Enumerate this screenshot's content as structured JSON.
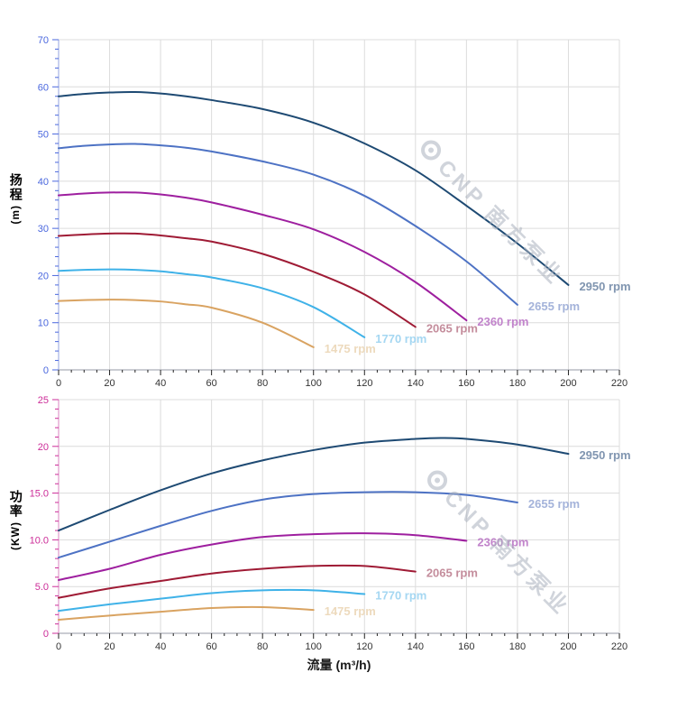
{
  "watermark": {
    "text": "CNP 南方泵业"
  },
  "chart_data": [
    {
      "type": "line",
      "title": "",
      "ylabel": "扬程 (m)",
      "ylabel_text": "扬程",
      "y_unit": "(m)",
      "xlabel": "",
      "xlim": [
        0,
        220
      ],
      "ylim": [
        0,
        70
      ],
      "x_tick_step": 20,
      "x_minor_step": 5,
      "y_tick_step": 10,
      "y_minor_step": 2,
      "x_tick_labels": [
        "0",
        "20",
        "40",
        "60",
        "80",
        "100",
        "120",
        "140",
        "160",
        "180",
        "200",
        "220"
      ],
      "y_tick_labels": [
        "0",
        "10",
        "20",
        "30",
        "40",
        "50",
        "60",
        "70"
      ],
      "grid": true,
      "legend_position": "at-line-end",
      "axis_text_color": "#4a67de",
      "axis_title_color": "#2e4fd6",
      "axis_line_color": "#b7c2ea",
      "series": [
        {
          "name": "2950 rpm",
          "color": "#1e4a73",
          "label_color": "#8095b0",
          "points": [
            [
              0,
              58
            ],
            [
              10,
              58.5
            ],
            [
              20,
              58.8
            ],
            [
              30,
              58.9
            ],
            [
              40,
              58.6
            ],
            [
              50,
              58.0
            ],
            [
              60,
              57.2
            ],
            [
              80,
              55.3
            ],
            [
              100,
              52.4
            ],
            [
              120,
              48.0
            ],
            [
              140,
              42.3
            ],
            [
              160,
              34.8
            ],
            [
              180,
              26.8
            ],
            [
              200,
              18.0
            ]
          ]
        },
        {
          "name": "2655 rpm",
          "color": "#4d72c4",
          "label_color": "#a4b3da",
          "points": [
            [
              0,
              47
            ],
            [
              10,
              47.5
            ],
            [
              20,
              47.8
            ],
            [
              30,
              47.9
            ],
            [
              40,
              47.6
            ],
            [
              50,
              47.1
            ],
            [
              60,
              46.3
            ],
            [
              80,
              44.2
            ],
            [
              100,
              41.4
            ],
            [
              120,
              36.9
            ],
            [
              140,
              30.5
            ],
            [
              160,
              23.0
            ],
            [
              180,
              13.8
            ]
          ]
        },
        {
          "name": "2360 rpm",
          "color": "#9e1f9f",
          "label_color": "#c183cb",
          "points": [
            [
              0,
              37
            ],
            [
              10,
              37.4
            ],
            [
              20,
              37.6
            ],
            [
              30,
              37.6
            ],
            [
              40,
              37.2
            ],
            [
              50,
              36.5
            ],
            [
              60,
              35.5
            ],
            [
              80,
              32.9
            ],
            [
              100,
              29.8
            ],
            [
              120,
              25.0
            ],
            [
              140,
              18.6
            ],
            [
              160,
              10.5
            ]
          ]
        },
        {
          "name": "2065 rpm",
          "color": "#9f1b35",
          "label_color": "#c48d9c",
          "points": [
            [
              0,
              28.4
            ],
            [
              10,
              28.7
            ],
            [
              20,
              28.9
            ],
            [
              30,
              28.9
            ],
            [
              40,
              28.5
            ],
            [
              50,
              27.9
            ],
            [
              60,
              27.2
            ],
            [
              80,
              24.6
            ],
            [
              100,
              20.8
            ],
            [
              120,
              16.0
            ],
            [
              140,
              9.1
            ]
          ]
        },
        {
          "name": "1770 rpm",
          "color": "#3fb2e8",
          "label_color": "#a5d7f2",
          "points": [
            [
              0,
              21
            ],
            [
              10,
              21.2
            ],
            [
              20,
              21.3
            ],
            [
              30,
              21.2
            ],
            [
              40,
              20.9
            ],
            [
              50,
              20.3
            ],
            [
              60,
              19.6
            ],
            [
              80,
              17.3
            ],
            [
              100,
              13.3
            ],
            [
              120,
              6.9
            ]
          ]
        },
        {
          "name": "1475 rpm",
          "color": "#d9a361",
          "label_color": "#eddabd",
          "points": [
            [
              0,
              14.6
            ],
            [
              10,
              14.8
            ],
            [
              20,
              14.9
            ],
            [
              30,
              14.8
            ],
            [
              40,
              14.5
            ],
            [
              50,
              13.9
            ],
            [
              60,
              13.2
            ],
            [
              80,
              10.0
            ],
            [
              100,
              4.8
            ]
          ]
        }
      ]
    },
    {
      "type": "line",
      "title": "",
      "ylabel": "功率 (KW)",
      "ylabel_text": "功率",
      "y_unit": "(KW)",
      "xlabel": "流量 (m³/h)",
      "xlim": [
        0,
        220
      ],
      "ylim": [
        0,
        25
      ],
      "x_tick_step": 20,
      "x_minor_step": 5,
      "y_tick_step": 5,
      "y_minor_step": 1,
      "x_tick_labels": [
        "0",
        "20",
        "40",
        "60",
        "80",
        "100",
        "120",
        "140",
        "160",
        "180",
        "200",
        "220"
      ],
      "y_tick_labels": [
        "0",
        "5.0",
        "10.0",
        "15.0",
        "20",
        "25"
      ],
      "grid": true,
      "legend_position": "at-line-end",
      "axis_text_color": "#cc2c98",
      "axis_title_color": "#bb1487",
      "axis_line_color": "#e6aed6",
      "series": [
        {
          "name": "2950 rpm",
          "color": "#1e4a73",
          "label_color": "#8095b0",
          "points": [
            [
              0,
              11.0
            ],
            [
              20,
              13.2
            ],
            [
              40,
              15.3
            ],
            [
              60,
              17.1
            ],
            [
              80,
              18.5
            ],
            [
              100,
              19.6
            ],
            [
              120,
              20.4
            ],
            [
              140,
              20.8
            ],
            [
              150,
              20.9
            ],
            [
              160,
              20.8
            ],
            [
              180,
              20.2
            ],
            [
              200,
              19.2
            ]
          ]
        },
        {
          "name": "2655 rpm",
          "color": "#4d72c4",
          "label_color": "#a4b3da",
          "points": [
            [
              0,
              8.1
            ],
            [
              20,
              9.8
            ],
            [
              40,
              11.5
            ],
            [
              60,
              13.1
            ],
            [
              80,
              14.3
            ],
            [
              100,
              14.9
            ],
            [
              120,
              15.1
            ],
            [
              140,
              15.1
            ],
            [
              160,
              14.8
            ],
            [
              180,
              14.0
            ]
          ]
        },
        {
          "name": "2360 rpm",
          "color": "#9e1f9f",
          "label_color": "#c183cb",
          "points": [
            [
              0,
              5.7
            ],
            [
              20,
              6.9
            ],
            [
              40,
              8.4
            ],
            [
              60,
              9.5
            ],
            [
              80,
              10.3
            ],
            [
              100,
              10.6
            ],
            [
              120,
              10.7
            ],
            [
              140,
              10.5
            ],
            [
              160,
              9.9
            ]
          ]
        },
        {
          "name": "2065 rpm",
          "color": "#9f1b35",
          "label_color": "#c48d9c",
          "points": [
            [
              0,
              3.8
            ],
            [
              20,
              4.8
            ],
            [
              40,
              5.6
            ],
            [
              60,
              6.4
            ],
            [
              80,
              6.9
            ],
            [
              100,
              7.2
            ],
            [
              120,
              7.2
            ],
            [
              140,
              6.6
            ]
          ]
        },
        {
          "name": "1770 rpm",
          "color": "#3fb2e8",
          "label_color": "#a5d7f2",
          "points": [
            [
              0,
              2.4
            ],
            [
              20,
              3.1
            ],
            [
              40,
              3.7
            ],
            [
              60,
              4.3
            ],
            [
              80,
              4.6
            ],
            [
              100,
              4.6
            ],
            [
              120,
              4.2
            ]
          ]
        },
        {
          "name": "1475 rpm",
          "color": "#d9a361",
          "label_color": "#eddabd",
          "points": [
            [
              0,
              1.45
            ],
            [
              20,
              1.9
            ],
            [
              40,
              2.3
            ],
            [
              60,
              2.7
            ],
            [
              80,
              2.8
            ],
            [
              100,
              2.5
            ]
          ]
        }
      ]
    }
  ]
}
